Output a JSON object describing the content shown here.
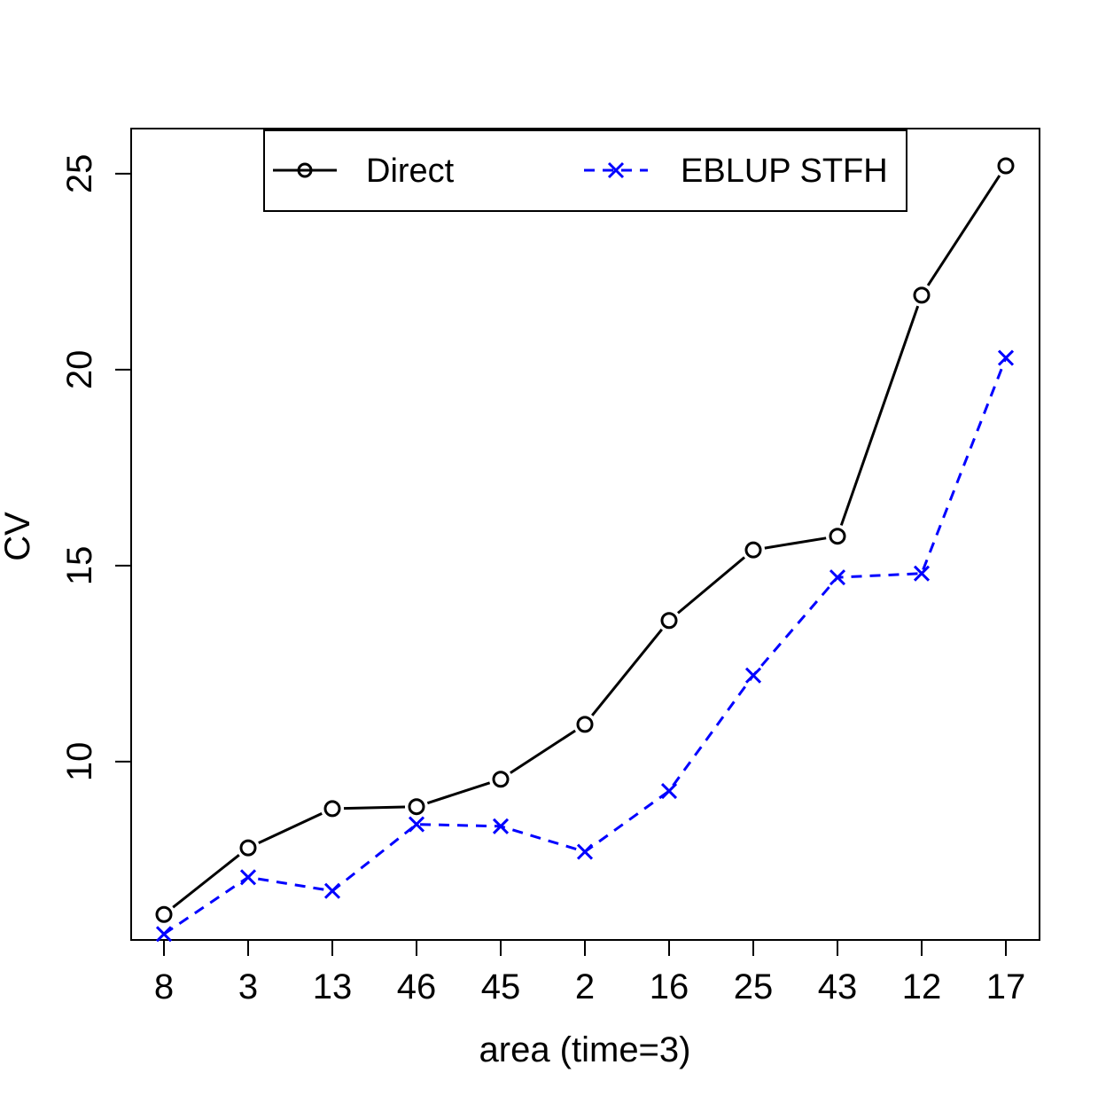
{
  "chart_data": {
    "type": "line",
    "title": "",
    "xlabel": "area (time=3)",
    "ylabel": "CV",
    "categories": [
      "8",
      "3",
      "13",
      "46",
      "45",
      "2",
      "16",
      "25",
      "43",
      "12",
      "17"
    ],
    "series": [
      {
        "name": "Direct",
        "values": [
          6.1,
          7.8,
          8.8,
          8.85,
          9.55,
          10.95,
          13.6,
          15.4,
          15.75,
          21.9,
          25.2
        ],
        "color": "#000000",
        "line_style": "solid",
        "marker": "circle"
      },
      {
        "name": "EBLUP STFH",
        "values": [
          5.6,
          7.05,
          6.7,
          8.4,
          8.35,
          7.7,
          9.25,
          12.2,
          14.7,
          14.8,
          20.3
        ],
        "color": "#0000ff",
        "line_style": "dashed",
        "marker": "x"
      }
    ],
    "ylim": [
      5.45,
      26.15
    ],
    "yticks": [
      "10",
      "15",
      "20",
      "25"
    ],
    "grid": false,
    "legend_position": "top",
    "legend_layout": "horizontal"
  }
}
